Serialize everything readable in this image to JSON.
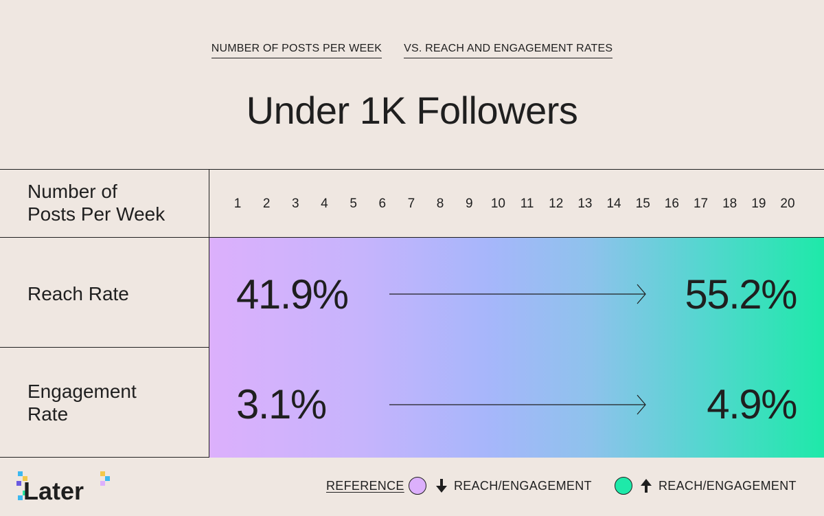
{
  "header": {
    "subtitle_part1": "NUMBER OF POSTS PER WEEK",
    "subtitle_part2": "VS. REACH AND ENGAGEMENT RATES",
    "title": "Under 1K Followers"
  },
  "table": {
    "header_label_line1": "Number of",
    "header_label_line2": "Posts Per Week",
    "rows": [
      {
        "label_line1": "Reach Rate",
        "label_line2": "",
        "start_value": "41.9%",
        "end_value": "55.2%"
      },
      {
        "label_line1": "Engagement",
        "label_line2": "Rate",
        "start_value": "3.1%",
        "end_value": "4.9%"
      }
    ]
  },
  "chart_data": {
    "type": "table",
    "title": "Under 1K Followers",
    "subtitle": "NUMBER OF POSTS PER WEEK VS. REACH AND ENGAGEMENT RATES",
    "xlabel": "Number of Posts Per Week",
    "x": [
      1,
      2,
      3,
      4,
      5,
      6,
      7,
      8,
      9,
      10,
      11,
      12,
      13,
      14,
      15,
      16,
      17,
      18,
      19,
      20
    ],
    "series": [
      {
        "name": "Reach Rate",
        "start_x": 1,
        "end_x": 20,
        "start_value": 41.9,
        "end_value": 55.2,
        "unit": "%"
      },
      {
        "name": "Engagement Rate",
        "start_x": 1,
        "end_x": 20,
        "start_value": 3.1,
        "end_value": 4.9,
        "unit": "%"
      }
    ],
    "gradient_colors": [
      "#dcb0fc",
      "#a7b6fb",
      "#1ee9a9"
    ]
  },
  "footer": {
    "logo_text": "Later",
    "reference_label": "REFERENCE",
    "legend": [
      {
        "icon": "arrow-down-icon",
        "label": "REACH/ENGAGEMENT",
        "color": "#dcb0fc"
      },
      {
        "icon": "arrow-up-icon",
        "label": "REACH/ENGAGEMENT",
        "color": "#1ee9a9"
      }
    ]
  }
}
